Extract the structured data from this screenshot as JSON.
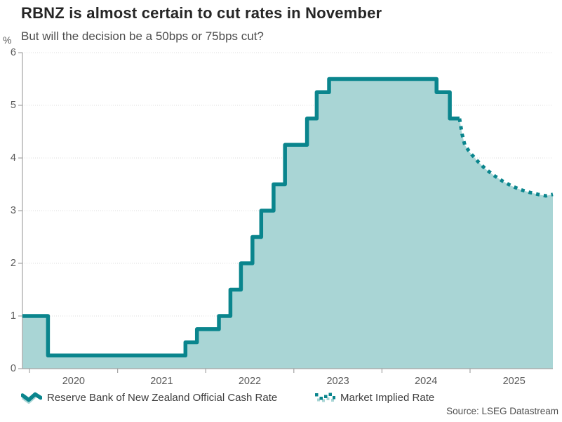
{
  "chart_data": {
    "type": "line",
    "title": "RBNZ is almost certain to cut rates in November",
    "subtitle": "But will the decision be a 50bps or 75bps cut?",
    "unit": "%",
    "xlabel": "",
    "ylabel": "%",
    "ylim": [
      0,
      6
    ],
    "xlim": [
      2019.92,
      2025.94
    ],
    "y_ticks": [
      0,
      1,
      2,
      3,
      4,
      5,
      6
    ],
    "x_ticks": [
      2020,
      2021,
      2022,
      2023,
      2024,
      2025
    ],
    "grid": "horizontal-dotted",
    "legend_position": "bottom",
    "series": [
      {
        "name": "Reserve Bank of New Zealand Official Cash Rate",
        "style": "solid-step-area",
        "points": [
          [
            2019.92,
            1.0
          ],
          [
            2020.21,
            0.25
          ],
          [
            2021.77,
            0.5
          ],
          [
            2021.9,
            0.75
          ],
          [
            2022.15,
            1.0
          ],
          [
            2022.28,
            1.5
          ],
          [
            2022.4,
            2.0
          ],
          [
            2022.53,
            2.5
          ],
          [
            2022.63,
            3.0
          ],
          [
            2022.77,
            3.5
          ],
          [
            2022.9,
            4.25
          ],
          [
            2023.15,
            4.75
          ],
          [
            2023.26,
            5.25
          ],
          [
            2023.4,
            5.5
          ],
          [
            2024.62,
            5.25
          ],
          [
            2024.77,
            4.75
          ],
          [
            2024.88,
            4.75
          ]
        ]
      },
      {
        "name": "Market Implied Rate",
        "style": "dotted-line",
        "points": [
          [
            2024.88,
            4.75
          ],
          [
            2024.91,
            4.45
          ],
          [
            2024.94,
            4.25
          ],
          [
            2025.0,
            4.1
          ],
          [
            2025.08,
            3.95
          ],
          [
            2025.17,
            3.8
          ],
          [
            2025.27,
            3.67
          ],
          [
            2025.37,
            3.56
          ],
          [
            2025.47,
            3.47
          ],
          [
            2025.57,
            3.4
          ],
          [
            2025.67,
            3.35
          ],
          [
            2025.77,
            3.31
          ],
          [
            2025.86,
            3.28
          ],
          [
            2025.94,
            3.31
          ]
        ]
      }
    ],
    "colors": {
      "line": "#0a858d",
      "fill": "#a9d5d5",
      "grid": "#dcdcdc",
      "axis": "#a3a3a3",
      "tick_text": "#595959"
    }
  },
  "footer": {
    "source": "Source: LSEG Datastream"
  }
}
